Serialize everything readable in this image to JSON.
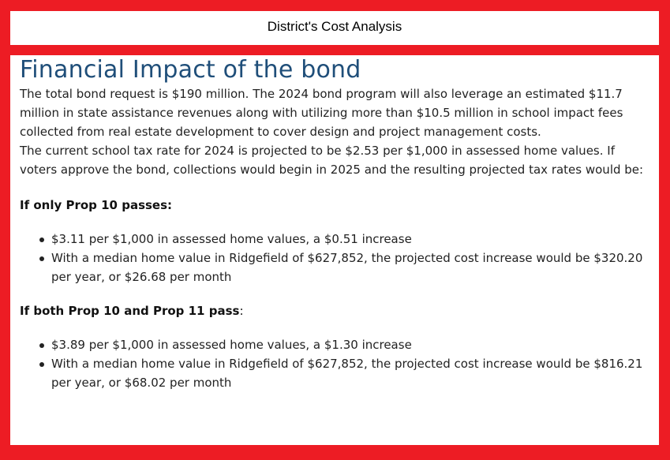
{
  "header": {
    "title": "District's Cost Analysis"
  },
  "content": {
    "title": "Financial Impact of the bond",
    "paragraph1": "The total bond request is $190 million. The 2024 bond program will also leverage an estimated $11.7 million in state assistance revenues along with utilizing more than $10.5 million in school impact fees collected from real estate development to cover design and project management costs.",
    "paragraph2": "The current school tax rate for 2024 is projected to be $2.53 per $1,000 in assessed home values. If voters approve the bond, collections would begin in 2025 and the resulting projected tax rates would be:",
    "section1": {
      "heading": "If only Prop 10 passes:",
      "bullets": [
        "$3.11 per $1,000 in assessed home values, a $0.51 increase",
        "With a median home value in Ridgefield of $627,852, the projected cost increase would be $320.20 per year, or $26.68 per month"
      ]
    },
    "section2": {
      "heading": "If both Prop 10 and Prop 11 pass",
      "heading_suffix": ":",
      "bullets": [
        "$3.89 per $1,000 in assessed home values, a $1.30 increase",
        "With a median home value in Ridgefield of $627,852, the projected cost increase would be $816.21 per year, or $68.02 per month"
      ]
    }
  },
  "colors": {
    "frame": "#ed1c24",
    "title": "#1f4e79",
    "text": "#222222"
  }
}
